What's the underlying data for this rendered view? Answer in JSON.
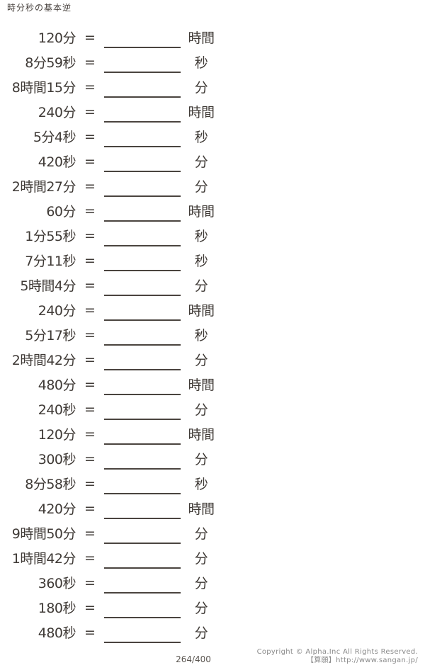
{
  "page": {
    "title": "時分秒の基本逆",
    "page_number": "264/400",
    "copyright_line1": "Copyright © Alpha.Inc All Rights Reserved.",
    "copyright_line2": "【算願】http://www.sangan.jp/"
  },
  "symbols": {
    "equals": "="
  },
  "problems": [
    {
      "expression": "120分",
      "unit": "時間"
    },
    {
      "expression": "8分59秒",
      "unit": "秒"
    },
    {
      "expression": "8時間15分",
      "unit": "分"
    },
    {
      "expression": "240分",
      "unit": "時間"
    },
    {
      "expression": "5分4秒",
      "unit": "秒"
    },
    {
      "expression": "420秒",
      "unit": "分"
    },
    {
      "expression": "2時間27分",
      "unit": "分"
    },
    {
      "expression": "60分",
      "unit": "時間"
    },
    {
      "expression": "1分55秒",
      "unit": "秒"
    },
    {
      "expression": "7分11秒",
      "unit": "秒"
    },
    {
      "expression": "5時間4分",
      "unit": "分"
    },
    {
      "expression": "240分",
      "unit": "時間"
    },
    {
      "expression": "5分17秒",
      "unit": "秒"
    },
    {
      "expression": "2時間42分",
      "unit": "分"
    },
    {
      "expression": "480分",
      "unit": "時間"
    },
    {
      "expression": "240秒",
      "unit": "分"
    },
    {
      "expression": "120分",
      "unit": "時間"
    },
    {
      "expression": "300秒",
      "unit": "分"
    },
    {
      "expression": "8分58秒",
      "unit": "秒"
    },
    {
      "expression": "420分",
      "unit": "時間"
    },
    {
      "expression": "9時間50分",
      "unit": "分"
    },
    {
      "expression": "1時間42分",
      "unit": "分"
    },
    {
      "expression": "360秒",
      "unit": "分"
    },
    {
      "expression": "180秒",
      "unit": "分"
    },
    {
      "expression": "480秒",
      "unit": "分"
    }
  ]
}
